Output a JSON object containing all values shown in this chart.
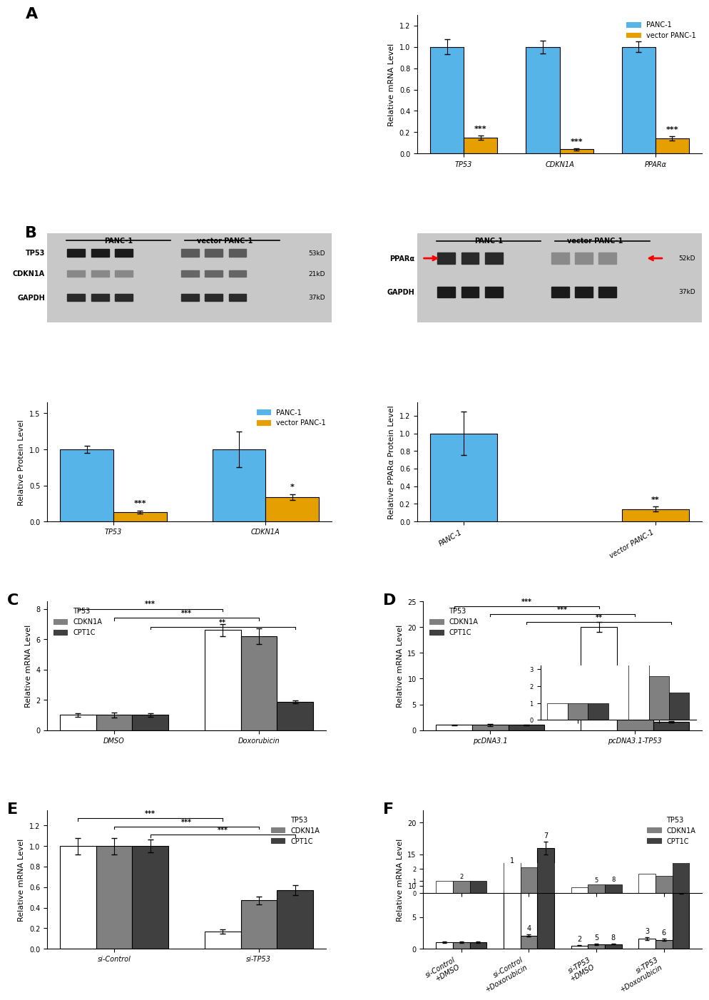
{
  "panelA": {
    "categories": [
      "TP53",
      "CDKN1A",
      "PPARα"
    ],
    "panc1_vals": [
      1.0,
      1.0,
      1.0
    ],
    "panc1_err": [
      0.07,
      0.06,
      0.05
    ],
    "vec_vals": [
      0.15,
      0.04,
      0.14
    ],
    "vec_err": [
      0.02,
      0.01,
      0.02
    ],
    "ylabel": "Relative mRNA Level",
    "ylim": [
      0,
      1.3
    ],
    "yticks": [
      0.0,
      0.2,
      0.4,
      0.6,
      0.8,
      1.0,
      1.2
    ],
    "sig_labels": [
      "***",
      "***",
      "***"
    ],
    "color_panc1": "#56B4E9",
    "color_vec": "#E69F00",
    "legend_panc1": "PANC-1",
    "legend_vec": "vector PANC-1"
  },
  "panelB_left": {
    "categories": [
      "TP53",
      "CDKN1A"
    ],
    "panc1_vals": [
      1.0,
      1.0
    ],
    "panc1_err": [
      0.05,
      0.25
    ],
    "vec_vals": [
      0.13,
      0.34
    ],
    "vec_err": [
      0.02,
      0.04
    ],
    "ylabel": "Relative Protein Level",
    "ylim": [
      0,
      1.65
    ],
    "yticks": [
      0.0,
      0.5,
      1.0,
      1.5
    ],
    "sig_labels": [
      "***",
      "*"
    ],
    "color_panc1": "#56B4E9",
    "color_vec": "#E69F00",
    "legend_panc1": "PANC-1",
    "legend_vec": "vector PANC-1"
  },
  "panelB_right": {
    "categories": [
      "PANC-1",
      "vector PANC-1"
    ],
    "panc1_vals": [
      1.0
    ],
    "panc1_err": [
      0.25
    ],
    "vec_vals": [
      0.14
    ],
    "vec_err": [
      0.03
    ],
    "ylabel": "Relative PPARα Protein Level",
    "ylim": [
      0,
      1.35
    ],
    "yticks": [
      0.0,
      0.2,
      0.4,
      0.6,
      0.8,
      1.0,
      1.2
    ],
    "sig_label": "**",
    "color_panc1": "#56B4E9",
    "color_vec": "#E69F00"
  },
  "panelC": {
    "groups": [
      "DMSO",
      "Doxorubicin"
    ],
    "tp53_vals": [
      1.0,
      6.6
    ],
    "tp53_err": [
      0.1,
      0.4
    ],
    "cdkn1a_vals": [
      1.0,
      6.2
    ],
    "cdkn1a_err": [
      0.15,
      0.5
    ],
    "cpt1c_vals": [
      1.0,
      1.85
    ],
    "cpt1c_err": [
      0.12,
      0.1
    ],
    "ylabel": "Relative mRNA Level",
    "ylim": [
      0,
      8.5
    ],
    "yticks": [
      0,
      2,
      4,
      6,
      8
    ],
    "color_tp53": "#FFFFFF",
    "color_cdkn1a": "#808080",
    "color_cpt1c": "#404040",
    "legend_tp53": "TP53",
    "legend_cdkn1a": "CDKN1A",
    "legend_cpt1c": "CPT1C"
  },
  "panelD": {
    "groups": [
      "pcDNA3.1",
      "pcDNA3.1-TP53"
    ],
    "tp53_vals": [
      1.0,
      20.0
    ],
    "tp53_err": [
      0.1,
      1.0
    ],
    "cdkn1a_vals": [
      1.0,
      2.6
    ],
    "cdkn1a_err": [
      0.15,
      0.2
    ],
    "cpt1c_vals": [
      1.0,
      1.6
    ],
    "cpt1c_err": [
      0.12,
      0.15
    ],
    "ylabel": "Relative mRNA Level",
    "ylim": [
      0,
      25
    ],
    "yticks": [
      0,
      5,
      10,
      15,
      20,
      25
    ],
    "color_tp53": "#FFFFFF",
    "color_cdkn1a": "#808080",
    "color_cpt1c": "#404040",
    "legend_tp53": "TP53",
    "legend_cdkn1a": "CDKN1A",
    "legend_cpt1c": "CPT1C"
  },
  "panelE": {
    "groups": [
      "si-Control",
      "si-TP53"
    ],
    "tp53_vals": [
      1.0,
      0.17
    ],
    "tp53_err": [
      0.08,
      0.02
    ],
    "cdkn1a_vals": [
      1.0,
      0.47
    ],
    "cdkn1a_err": [
      0.08,
      0.04
    ],
    "cpt1c_vals": [
      1.0,
      0.57
    ],
    "cpt1c_err": [
      0.06,
      0.05
    ],
    "ylabel": "Relative mRNA Level",
    "ylim": [
      0,
      1.35
    ],
    "yticks": [
      0.0,
      0.2,
      0.4,
      0.6,
      0.8,
      1.0,
      1.2
    ],
    "color_tp53": "#FFFFFF",
    "color_cdkn1a": "#808080",
    "color_cpt1c": "#404040",
    "legend_tp53": "TP53",
    "legend_cdkn1a": "CDKN1A",
    "legend_cpt1c": "CPT1C"
  },
  "panelF": {
    "groups": [
      "si-Control\n+DMSO",
      "si-Control\n+Doxorubicin",
      "si-TP53\n+DMSO",
      "si-TP53\n+Doxorubicin"
    ],
    "tp53_vals": [
      1.0,
      11.5,
      0.5,
      1.6
    ],
    "tp53_err": [
      0.1,
      1.5,
      0.05,
      0.2
    ],
    "cdkn1a_vals": [
      1.0,
      2.1,
      0.7,
      1.4
    ],
    "cdkn1a_err": [
      0.1,
      0.15,
      0.08,
      0.15
    ],
    "cpt1c_vals": [
      1.0,
      16.0,
      0.75,
      9.5
    ],
    "cpt1c_err": [
      0.1,
      1.0,
      0.08,
      0.8
    ],
    "ylabel": "Relative mRNA Level",
    "ylim": [
      0,
      22
    ],
    "yticks": [
      0,
      5,
      10,
      15,
      20
    ],
    "color_tp53": "#FFFFFF",
    "color_cdkn1a": "#808080",
    "color_cpt1c": "#404040",
    "legend_tp53": "TP53",
    "legend_cdkn1a": "CDKN1A",
    "legend_cpt1c": "CPT1C"
  },
  "panel_label_fontsize": 16,
  "axis_label_fontsize": 8,
  "tick_fontsize": 7,
  "legend_fontsize": 7,
  "sig_fontsize": 8,
  "edge_color": "#000000",
  "background_color": "#FFFFFF"
}
